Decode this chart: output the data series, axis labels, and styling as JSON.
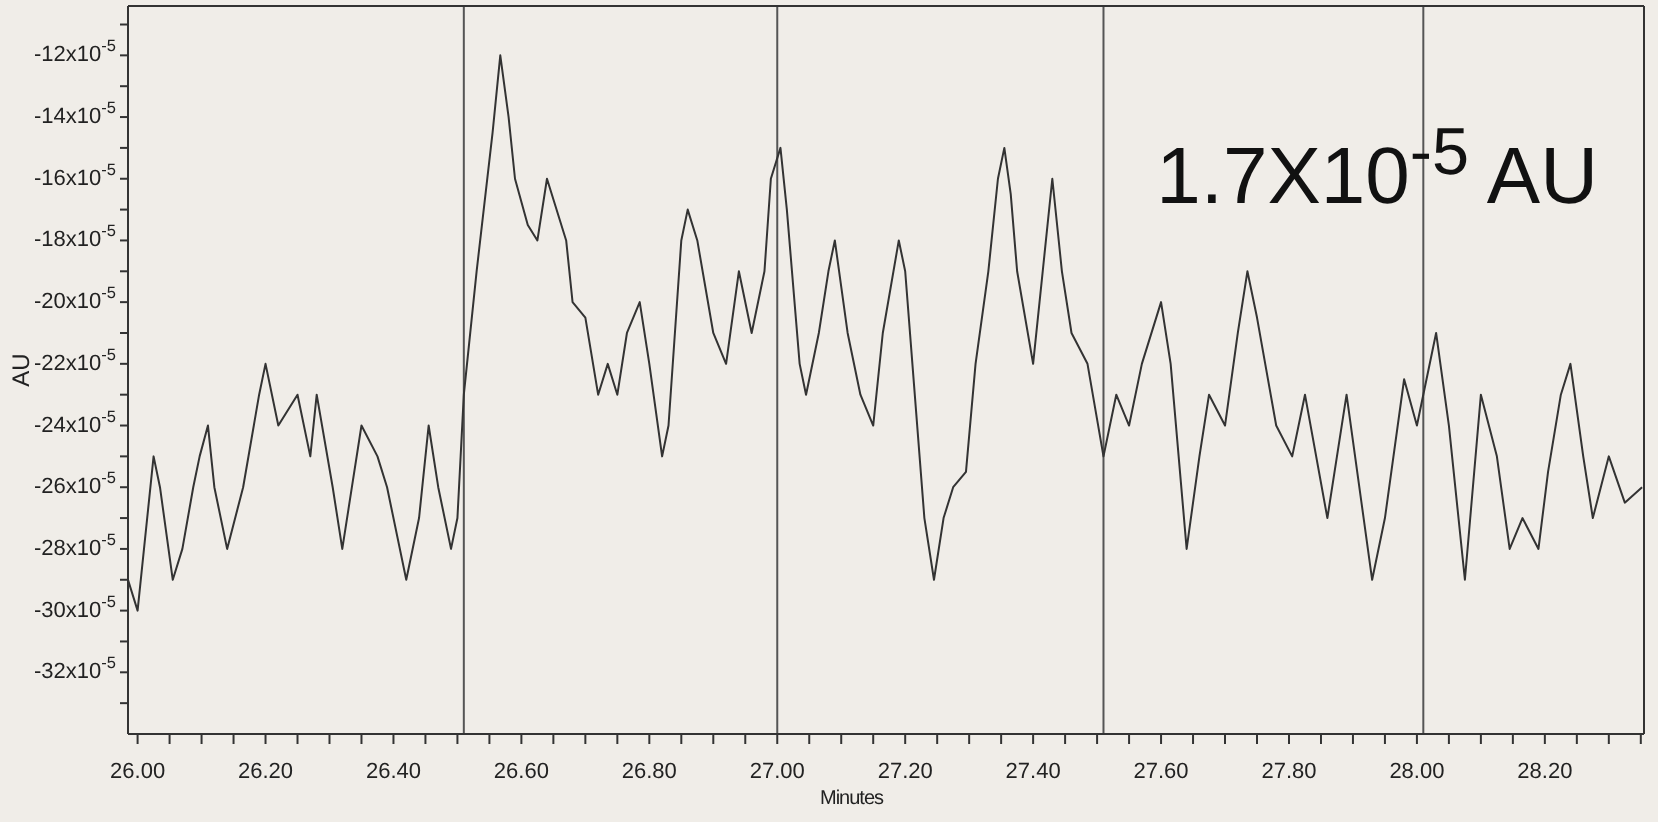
{
  "chart_data": {
    "type": "line",
    "xlabel": "Minutes",
    "ylabel": "AU",
    "annotations": [
      "1.7X10$^{-5}$ AU"
    ],
    "xlim": [
      25.985,
      28.355
    ],
    "xticks": [
      {
        "value": 26.0,
        "label": "26.00"
      },
      {
        "value": 26.05,
        "label": null
      },
      {
        "value": 26.1,
        "label": null
      },
      {
        "value": 26.15,
        "label": null
      },
      {
        "value": 26.2,
        "label": "26.20"
      },
      {
        "value": 26.25,
        "label": null
      },
      {
        "value": 26.3,
        "label": null
      },
      {
        "value": 26.35,
        "label": null
      },
      {
        "value": 26.4,
        "label": "26.40"
      },
      {
        "value": 26.45,
        "label": null
      },
      {
        "value": 26.5,
        "label": null
      },
      {
        "value": 26.55,
        "label": null
      },
      {
        "value": 26.6,
        "label": "26.60"
      },
      {
        "value": 26.65,
        "label": null
      },
      {
        "value": 26.7,
        "label": null
      },
      {
        "value": 26.75,
        "label": null
      },
      {
        "value": 26.8,
        "label": "26.80"
      },
      {
        "value": 26.85,
        "label": null
      },
      {
        "value": 26.9,
        "label": null
      },
      {
        "value": 26.95,
        "label": null
      },
      {
        "value": 27.0,
        "label": "27.00"
      },
      {
        "value": 27.05,
        "label": null
      },
      {
        "value": 27.1,
        "label": null
      },
      {
        "value": 27.15,
        "label": null
      },
      {
        "value": 27.2,
        "label": "27.20"
      },
      {
        "value": 27.25,
        "label": null
      },
      {
        "value": 27.3,
        "label": null
      },
      {
        "value": 27.35,
        "label": null
      },
      {
        "value": 27.4,
        "label": "27.40"
      },
      {
        "value": 27.45,
        "label": null
      },
      {
        "value": 27.5,
        "label": null
      },
      {
        "value": 27.55,
        "label": null
      },
      {
        "value": 27.6,
        "label": "27.60"
      },
      {
        "value": 27.65,
        "label": null
      },
      {
        "value": 27.7,
        "label": null
      },
      {
        "value": 27.75,
        "label": null
      },
      {
        "value": 27.8,
        "label": "27.80"
      },
      {
        "value": 27.85,
        "label": null
      },
      {
        "value": 27.9,
        "label": null
      },
      {
        "value": 27.95,
        "label": null
      },
      {
        "value": 28.0,
        "label": "28.00"
      },
      {
        "value": 28.05,
        "label": null
      },
      {
        "value": 28.1,
        "label": null
      },
      {
        "value": 28.15,
        "label": null
      },
      {
        "value": 28.2,
        "label": "28.20"
      },
      {
        "value": 28.25,
        "label": null
      },
      {
        "value": 28.3,
        "label": null
      },
      {
        "value": 28.35,
        "label": null
      }
    ],
    "ylim": [
      -0.00034,
      -0.000104
    ],
    "yticks": [
      {
        "value": -0.00033,
        "label": null
      },
      {
        "value": -0.00032,
        "label": "-32x10$^{-5}$"
      },
      {
        "value": -0.00031,
        "label": null
      },
      {
        "value": -0.0003,
        "label": "-30x10$^{-5}$"
      },
      {
        "value": -0.00029,
        "label": null
      },
      {
        "value": -0.00028,
        "label": "-28x10$^{-5}$"
      },
      {
        "value": -0.00027,
        "label": null
      },
      {
        "value": -0.00026,
        "label": "-26x10$^{-5}$"
      },
      {
        "value": -0.00025,
        "label": null
      },
      {
        "value": -0.00024,
        "label": "-24x10$^{-5}$"
      },
      {
        "value": -0.00023,
        "label": null
      },
      {
        "value": -0.00022,
        "label": "-22x10$^{-5}$"
      },
      {
        "value": -0.00021,
        "label": null
      },
      {
        "value": -0.0002,
        "label": "-20x10$^{-5}$"
      },
      {
        "value": -0.00019,
        "label": null
      },
      {
        "value": -0.00018,
        "label": "-18x10$^{-5}$"
      },
      {
        "value": -0.00017,
        "label": null
      },
      {
        "value": -0.00016,
        "label": "-16x10$^{-5}$"
      },
      {
        "value": -0.00015,
        "label": null
      },
      {
        "value": -0.00014,
        "label": "-14x10$^{-5}$"
      },
      {
        "value": -0.00013,
        "label": null
      },
      {
        "value": -0.00012,
        "label": "-12x10$^{-5}$"
      },
      {
        "value": -0.00011,
        "label": null
      }
    ],
    "marker": "none",
    "line_style": "solid",
    "ref_lines": [
      {
        "axis": "x",
        "value": 26.51,
        "color": "#555555"
      },
      {
        "axis": "x",
        "value": 27.0,
        "color": "#555555"
      },
      {
        "axis": "x",
        "value": 27.51,
        "color": "#555555"
      },
      {
        "axis": "x",
        "value": 28.01,
        "color": "#555555"
      }
    ],
    "series": [
      {
        "color": "#333333",
        "x": [
          25.985,
          26.0,
          26.01,
          26.025,
          26.035,
          26.055,
          26.07,
          26.087,
          26.097,
          26.11,
          26.12,
          26.14,
          26.165,
          26.19,
          26.2,
          26.22,
          26.25,
          26.27,
          26.28,
          26.305,
          26.32,
          26.335,
          26.35,
          26.375,
          26.39,
          26.42,
          26.44,
          26.455,
          26.47,
          26.49,
          26.5,
          26.51,
          26.53,
          26.555,
          26.567,
          26.58,
          26.59,
          26.61,
          26.625,
          26.64,
          26.67,
          26.68,
          26.7,
          26.72,
          26.735,
          26.75,
          26.765,
          26.785,
          26.8,
          26.82,
          26.83,
          26.85,
          26.86,
          26.875,
          26.9,
          26.92,
          26.94,
          26.96,
          26.98,
          26.99,
          27.005,
          27.015,
          27.035,
          27.045,
          27.065,
          27.08,
          27.09,
          27.11,
          27.13,
          27.15,
          27.165,
          27.19,
          27.2,
          27.215,
          27.23,
          27.245,
          27.26,
          27.275,
          27.295,
          27.31,
          27.33,
          27.345,
          27.355,
          27.365,
          27.375,
          27.4,
          27.415,
          27.43,
          27.445,
          27.46,
          27.485,
          27.51,
          27.53,
          27.55,
          27.57,
          27.6,
          27.615,
          27.64,
          27.66,
          27.675,
          27.7,
          27.72,
          27.735,
          27.75,
          27.78,
          27.805,
          27.825,
          27.86,
          27.89,
          27.93,
          27.95,
          27.98,
          28.0,
          28.03,
          28.05,
          28.075,
          28.1,
          28.125,
          28.145,
          28.165,
          28.19,
          28.205,
          28.225,
          28.24,
          28.26,
          28.275,
          28.3,
          28.325,
          28.352
        ],
        "values": [
          -0.00029,
          -0.0003,
          -0.00028,
          -0.00025,
          -0.00026,
          -0.00029,
          -0.00028,
          -0.00026,
          -0.00025,
          -0.00024,
          -0.00026,
          -0.00028,
          -0.00026,
          -0.00023,
          -0.00022,
          -0.00024,
          -0.00023,
          -0.00025,
          -0.00023,
          -0.00026,
          -0.00028,
          -0.00026,
          -0.00024,
          -0.00025,
          -0.00026,
          -0.00029,
          -0.00027,
          -0.00024,
          -0.00026,
          -0.00028,
          -0.00027,
          -0.00023,
          -0.00019,
          -0.000145,
          -0.00012,
          -0.00014,
          -0.00016,
          -0.000175,
          -0.00018,
          -0.00016,
          -0.00018,
          -0.0002,
          -0.000205,
          -0.00023,
          -0.00022,
          -0.00023,
          -0.00021,
          -0.0002,
          -0.00022,
          -0.00025,
          -0.00024,
          -0.00018,
          -0.00017,
          -0.00018,
          -0.00021,
          -0.00022,
          -0.00019,
          -0.00021,
          -0.00019,
          -0.00016,
          -0.00015,
          -0.00017,
          -0.00022,
          -0.00023,
          -0.00021,
          -0.00019,
          -0.00018,
          -0.00021,
          -0.00023,
          -0.00024,
          -0.00021,
          -0.00018,
          -0.00019,
          -0.00023,
          -0.00027,
          -0.00029,
          -0.00027,
          -0.00026,
          -0.000255,
          -0.00022,
          -0.00019,
          -0.00016,
          -0.00015,
          -0.000165,
          -0.00019,
          -0.00022,
          -0.00019,
          -0.00016,
          -0.00019,
          -0.00021,
          -0.00022,
          -0.00025,
          -0.00023,
          -0.00024,
          -0.00022,
          -0.0002,
          -0.00022,
          -0.00028,
          -0.00025,
          -0.00023,
          -0.00024,
          -0.00021,
          -0.00019,
          -0.000205,
          -0.00024,
          -0.00025,
          -0.00023,
          -0.00027,
          -0.00023,
          -0.00029,
          -0.00027,
          -0.000225,
          -0.00024,
          -0.00021,
          -0.00024,
          -0.00029,
          -0.00023,
          -0.00025,
          -0.00028,
          -0.00027,
          -0.00028,
          -0.000255,
          -0.00023,
          -0.00022,
          -0.00025,
          -0.00027,
          -0.00025,
          -0.000265,
          -0.00026
        ]
      }
    ]
  }
}
